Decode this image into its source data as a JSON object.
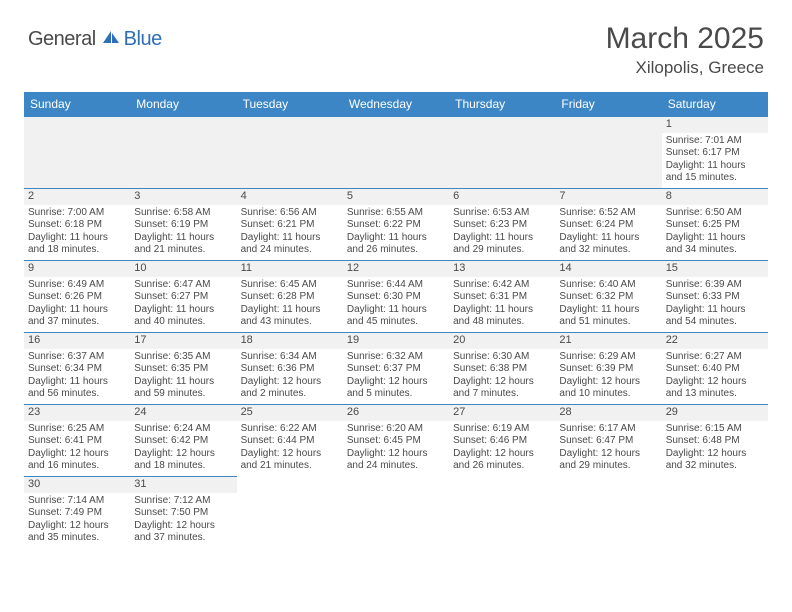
{
  "logo": {
    "text1": "General",
    "text2": "Blue"
  },
  "title": "March 2025",
  "location": "Xilopolis, Greece",
  "colors": {
    "header_bg": "#3d86c6",
    "header_text": "#ffffff",
    "text": "#4a4a4a",
    "divider": "#3d86c6",
    "shade": "#f1f1f1",
    "logo_blue": "#2d6fb8"
  },
  "typography": {
    "title_fontsize": 30,
    "location_fontsize": 17,
    "dayheader_fontsize": 12,
    "cell_fontsize": 10
  },
  "day_headers": [
    "Sunday",
    "Monday",
    "Tuesday",
    "Wednesday",
    "Thursday",
    "Friday",
    "Saturday"
  ],
  "weeks": [
    [
      null,
      null,
      null,
      null,
      null,
      null,
      {
        "n": "1",
        "sunrise": "Sunrise: 7:01 AM",
        "sunset": "Sunset: 6:17 PM",
        "daylight1": "Daylight: 11 hours",
        "daylight2": "and 15 minutes."
      }
    ],
    [
      {
        "n": "2",
        "sunrise": "Sunrise: 7:00 AM",
        "sunset": "Sunset: 6:18 PM",
        "daylight1": "Daylight: 11 hours",
        "daylight2": "and 18 minutes."
      },
      {
        "n": "3",
        "sunrise": "Sunrise: 6:58 AM",
        "sunset": "Sunset: 6:19 PM",
        "daylight1": "Daylight: 11 hours",
        "daylight2": "and 21 minutes."
      },
      {
        "n": "4",
        "sunrise": "Sunrise: 6:56 AM",
        "sunset": "Sunset: 6:21 PM",
        "daylight1": "Daylight: 11 hours",
        "daylight2": "and 24 minutes."
      },
      {
        "n": "5",
        "sunrise": "Sunrise: 6:55 AM",
        "sunset": "Sunset: 6:22 PM",
        "daylight1": "Daylight: 11 hours",
        "daylight2": "and 26 minutes."
      },
      {
        "n": "6",
        "sunrise": "Sunrise: 6:53 AM",
        "sunset": "Sunset: 6:23 PM",
        "daylight1": "Daylight: 11 hours",
        "daylight2": "and 29 minutes."
      },
      {
        "n": "7",
        "sunrise": "Sunrise: 6:52 AM",
        "sunset": "Sunset: 6:24 PM",
        "daylight1": "Daylight: 11 hours",
        "daylight2": "and 32 minutes."
      },
      {
        "n": "8",
        "sunrise": "Sunrise: 6:50 AM",
        "sunset": "Sunset: 6:25 PM",
        "daylight1": "Daylight: 11 hours",
        "daylight2": "and 34 minutes."
      }
    ],
    [
      {
        "n": "9",
        "sunrise": "Sunrise: 6:49 AM",
        "sunset": "Sunset: 6:26 PM",
        "daylight1": "Daylight: 11 hours",
        "daylight2": "and 37 minutes."
      },
      {
        "n": "10",
        "sunrise": "Sunrise: 6:47 AM",
        "sunset": "Sunset: 6:27 PM",
        "daylight1": "Daylight: 11 hours",
        "daylight2": "and 40 minutes."
      },
      {
        "n": "11",
        "sunrise": "Sunrise: 6:45 AM",
        "sunset": "Sunset: 6:28 PM",
        "daylight1": "Daylight: 11 hours",
        "daylight2": "and 43 minutes."
      },
      {
        "n": "12",
        "sunrise": "Sunrise: 6:44 AM",
        "sunset": "Sunset: 6:30 PM",
        "daylight1": "Daylight: 11 hours",
        "daylight2": "and 45 minutes."
      },
      {
        "n": "13",
        "sunrise": "Sunrise: 6:42 AM",
        "sunset": "Sunset: 6:31 PM",
        "daylight1": "Daylight: 11 hours",
        "daylight2": "and 48 minutes."
      },
      {
        "n": "14",
        "sunrise": "Sunrise: 6:40 AM",
        "sunset": "Sunset: 6:32 PM",
        "daylight1": "Daylight: 11 hours",
        "daylight2": "and 51 minutes."
      },
      {
        "n": "15",
        "sunrise": "Sunrise: 6:39 AM",
        "sunset": "Sunset: 6:33 PM",
        "daylight1": "Daylight: 11 hours",
        "daylight2": "and 54 minutes."
      }
    ],
    [
      {
        "n": "16",
        "sunrise": "Sunrise: 6:37 AM",
        "sunset": "Sunset: 6:34 PM",
        "daylight1": "Daylight: 11 hours",
        "daylight2": "and 56 minutes."
      },
      {
        "n": "17",
        "sunrise": "Sunrise: 6:35 AM",
        "sunset": "Sunset: 6:35 PM",
        "daylight1": "Daylight: 11 hours",
        "daylight2": "and 59 minutes."
      },
      {
        "n": "18",
        "sunrise": "Sunrise: 6:34 AM",
        "sunset": "Sunset: 6:36 PM",
        "daylight1": "Daylight: 12 hours",
        "daylight2": "and 2 minutes."
      },
      {
        "n": "19",
        "sunrise": "Sunrise: 6:32 AM",
        "sunset": "Sunset: 6:37 PM",
        "daylight1": "Daylight: 12 hours",
        "daylight2": "and 5 minutes."
      },
      {
        "n": "20",
        "sunrise": "Sunrise: 6:30 AM",
        "sunset": "Sunset: 6:38 PM",
        "daylight1": "Daylight: 12 hours",
        "daylight2": "and 7 minutes."
      },
      {
        "n": "21",
        "sunrise": "Sunrise: 6:29 AM",
        "sunset": "Sunset: 6:39 PM",
        "daylight1": "Daylight: 12 hours",
        "daylight2": "and 10 minutes."
      },
      {
        "n": "22",
        "sunrise": "Sunrise: 6:27 AM",
        "sunset": "Sunset: 6:40 PM",
        "daylight1": "Daylight: 12 hours",
        "daylight2": "and 13 minutes."
      }
    ],
    [
      {
        "n": "23",
        "sunrise": "Sunrise: 6:25 AM",
        "sunset": "Sunset: 6:41 PM",
        "daylight1": "Daylight: 12 hours",
        "daylight2": "and 16 minutes."
      },
      {
        "n": "24",
        "sunrise": "Sunrise: 6:24 AM",
        "sunset": "Sunset: 6:42 PM",
        "daylight1": "Daylight: 12 hours",
        "daylight2": "and 18 minutes."
      },
      {
        "n": "25",
        "sunrise": "Sunrise: 6:22 AM",
        "sunset": "Sunset: 6:44 PM",
        "daylight1": "Daylight: 12 hours",
        "daylight2": "and 21 minutes."
      },
      {
        "n": "26",
        "sunrise": "Sunrise: 6:20 AM",
        "sunset": "Sunset: 6:45 PM",
        "daylight1": "Daylight: 12 hours",
        "daylight2": "and 24 minutes."
      },
      {
        "n": "27",
        "sunrise": "Sunrise: 6:19 AM",
        "sunset": "Sunset: 6:46 PM",
        "daylight1": "Daylight: 12 hours",
        "daylight2": "and 26 minutes."
      },
      {
        "n": "28",
        "sunrise": "Sunrise: 6:17 AM",
        "sunset": "Sunset: 6:47 PM",
        "daylight1": "Daylight: 12 hours",
        "daylight2": "and 29 minutes."
      },
      {
        "n": "29",
        "sunrise": "Sunrise: 6:15 AM",
        "sunset": "Sunset: 6:48 PM",
        "daylight1": "Daylight: 12 hours",
        "daylight2": "and 32 minutes."
      }
    ],
    [
      {
        "n": "30",
        "sunrise": "Sunrise: 7:14 AM",
        "sunset": "Sunset: 7:49 PM",
        "daylight1": "Daylight: 12 hours",
        "daylight2": "and 35 minutes."
      },
      {
        "n": "31",
        "sunrise": "Sunrise: 7:12 AM",
        "sunset": "Sunset: 7:50 PM",
        "daylight1": "Daylight: 12 hours",
        "daylight2": "and 37 minutes."
      },
      null,
      null,
      null,
      null,
      null
    ]
  ]
}
